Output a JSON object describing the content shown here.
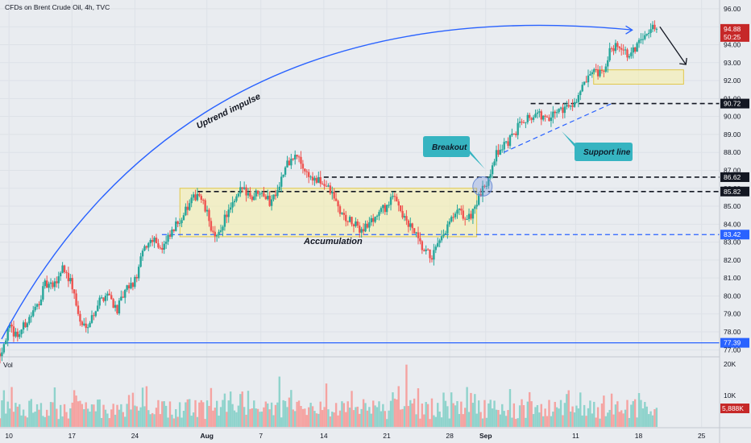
{
  "header": {
    "title": "CFDs on Brent Crude Oil, 4h, TVC",
    "volume_label": "Vol"
  },
  "colors": {
    "background": "#e9ecf0",
    "up": "#26a69a",
    "down": "#ef5350",
    "up_volume": "#8fd3cc",
    "down_volume": "#f5a3a1",
    "impulse_arrow": "#2962ff",
    "zone_fill": "#f7f1a6",
    "zone_border": "#e2c84a",
    "callout": "#36b4c1"
  },
  "price_axis": {
    "ticks": [
      "96.00",
      "95.00",
      "94.00",
      "93.00",
      "92.00",
      "91.00",
      "90.00",
      "89.00",
      "88.00",
      "87.00",
      "86.00",
      "85.00",
      "84.00",
      "83.00",
      "82.00",
      "81.00",
      "80.00",
      "79.00",
      "78.00",
      "77.00"
    ],
    "price_tag": {
      "value": "94.88",
      "countdown": "50:25",
      "color": "#c62828"
    },
    "level_tags": [
      {
        "value": "90.72",
        "color": "#131722"
      },
      {
        "value": "86.62",
        "color": "#131722"
      },
      {
        "value": "85.82",
        "color": "#131722"
      },
      {
        "value": "83.42",
        "color": "#2962ff"
      },
      {
        "value": "77.39",
        "color": "#2962ff"
      }
    ]
  },
  "volume_axis": {
    "ticks": [
      "20K",
      "10K"
    ],
    "tag": {
      "value": "5,888K",
      "color": "#c62828"
    }
  },
  "time_axis": {
    "ticks": [
      "10",
      "17",
      "24",
      "Aug",
      "7",
      "14",
      "21",
      "28",
      "Sep",
      "11",
      "18",
      "25"
    ]
  },
  "annotations": {
    "impulse": "Uptrend impulse",
    "accumulation": "Accumulation",
    "breakout": "Breakout",
    "support": "Support line"
  },
  "chart_data": {
    "type": "candlestick",
    "title": "CFDs on Brent Crude Oil, 4h, TVC",
    "interval": "4h",
    "y_range": [
      76.7,
      96.4
    ],
    "volume_range": [
      0,
      21000
    ],
    "x_range": [
      "Jul 9",
      "Sep 27"
    ],
    "grid": true,
    "price_path": [
      [
        "Jul 9",
        76.8
      ],
      [
        "Jul 10",
        78.2
      ],
      [
        "Jul 11",
        77.8
      ],
      [
        "Jul 12",
        78.6
      ],
      [
        "Jul 13",
        79.3
      ],
      [
        "Jul 14",
        80.6
      ],
      [
        "Jul 15",
        80.5
      ],
      [
        "Jul 16",
        81.7
      ],
      [
        "Jul 17",
        80.6
      ],
      [
        "Jul 18",
        78.3
      ],
      [
        "Jul 19",
        78.6
      ],
      [
        "Jul 20",
        79.7
      ],
      [
        "Jul 21",
        80.2
      ],
      [
        "Jul 22",
        79.2
      ],
      [
        "Jul 23",
        80.3
      ],
      [
        "Jul 24",
        80.8
      ],
      [
        "Jul 25",
        82.6
      ],
      [
        "Jul 26",
        83.3
      ],
      [
        "Jul 27",
        82.6
      ],
      [
        "Jul 28",
        83.4
      ],
      [
        "Jul 29",
        84.3
      ],
      [
        "Jul 30",
        85.0
      ],
      [
        "Jul 31",
        85.8
      ],
      [
        "Aug 1",
        84.6
      ],
      [
        "Aug 2",
        83.0
      ],
      [
        "Aug 3",
        84.4
      ],
      [
        "Aug 4",
        85.1
      ],
      [
        "Aug 5",
        86.1
      ],
      [
        "Aug 6",
        85.5
      ],
      [
        "Aug 7",
        86.0
      ],
      [
        "Aug 8",
        85.2
      ],
      [
        "Aug 9",
        86.2
      ],
      [
        "Aug 10",
        87.4
      ],
      [
        "Aug 11",
        87.8
      ],
      [
        "Aug 12",
        86.9
      ],
      [
        "Aug 13",
        86.4
      ],
      [
        "Aug 14",
        86.3
      ],
      [
        "Aug 15",
        85.6
      ],
      [
        "Aug 16",
        84.5
      ],
      [
        "Aug 17",
        84.1
      ],
      [
        "Aug 18",
        83.7
      ],
      [
        "Aug 19",
        84.0
      ],
      [
        "Aug 20",
        84.6
      ],
      [
        "Aug 21",
        85.0
      ],
      [
        "Aug 22",
        85.6
      ],
      [
        "Aug 23",
        84.2
      ],
      [
        "Aug 24",
        83.6
      ],
      [
        "Aug 25",
        82.5
      ],
      [
        "Aug 26",
        82.2
      ],
      [
        "Aug 27",
        83.0
      ],
      [
        "Aug 28",
        84.1
      ],
      [
        "Aug 29",
        84.7
      ],
      [
        "Aug 30",
        84.2
      ],
      [
        "Aug 31",
        85.2
      ],
      [
        "Sep 1",
        86.2
      ],
      [
        "Sep 2",
        87.8
      ],
      [
        "Sep 3",
        88.4
      ],
      [
        "Sep 4",
        88.8
      ],
      [
        "Sep 5",
        89.9
      ],
      [
        "Sep 6",
        90.0
      ],
      [
        "Sep 7",
        90.1
      ],
      [
        "Sep 8",
        89.7
      ],
      [
        "Sep 9",
        90.4
      ],
      [
        "Sep 10",
        90.5
      ],
      [
        "Sep 11",
        90.9
      ],
      [
        "Sep 12",
        91.8
      ],
      [
        "Sep 13",
        92.4
      ],
      [
        "Sep 14",
        92.3
      ],
      [
        "Sep 15",
        93.9
      ],
      [
        "Sep 16",
        94.0
      ],
      [
        "Sep 17",
        93.2
      ],
      [
        "Sep 18",
        94.2
      ],
      [
        "Sep 19",
        94.9
      ],
      [
        "Sep 20",
        94.88
      ]
    ],
    "levels": [
      {
        "label": "90.72",
        "value": 90.72,
        "style": "dashed"
      },
      {
        "label": "86.62",
        "value": 86.62,
        "style": "dashed"
      },
      {
        "label": "85.82",
        "value": 85.82,
        "style": "dashed"
      },
      {
        "label": "83.42",
        "value": 83.42,
        "style": "dashed"
      },
      {
        "label": "77.39",
        "value": 77.39,
        "style": "solid"
      }
    ],
    "zones": [
      {
        "label": "Accumulation",
        "from": "Jul 29",
        "to": "Aug 31",
        "low": 83.3,
        "high": 86.0
      },
      {
        "from": "Sep 13",
        "to": "Sep 23",
        "low": 91.8,
        "high": 92.6
      }
    ],
    "annotations": [
      "Uptrend impulse",
      "Accumulation",
      "Breakout",
      "Support line"
    ]
  }
}
